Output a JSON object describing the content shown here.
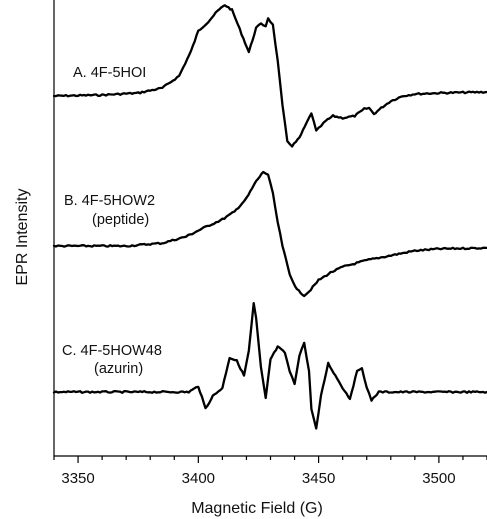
{
  "chart_data": {
    "type": "line",
    "title": "",
    "xlabel": "Magnetic Field (G)",
    "ylabel": "EPR Intensity",
    "xlim": [
      3340,
      3520
    ],
    "x_ticks": [
      3350,
      3400,
      3450,
      3500
    ],
    "y_ticks_shown": false,
    "grid": false,
    "legend": "none",
    "line_color": "#000000",
    "series": [
      {
        "name": "A. 4F-5HOI",
        "sublabel": "",
        "baseline": 0.0,
        "points": [
          [
            3340,
            0
          ],
          [
            3360,
            0.01
          ],
          [
            3375,
            0.03
          ],
          [
            3385,
            0.08
          ],
          [
            3392,
            0.2
          ],
          [
            3397,
            0.45
          ],
          [
            3400,
            0.65
          ],
          [
            3404,
            0.74
          ],
          [
            3408,
            0.85
          ],
          [
            3411,
            0.91
          ],
          [
            3414,
            0.86
          ],
          [
            3418,
            0.62
          ],
          [
            3421,
            0.44
          ],
          [
            3424,
            0.68
          ],
          [
            3426,
            0.72
          ],
          [
            3428,
            0.7
          ],
          [
            3429,
            0.78
          ],
          [
            3431,
            0.71
          ],
          [
            3433,
            0.35
          ],
          [
            3435,
            -0.1
          ],
          [
            3437,
            -0.45
          ],
          [
            3439,
            -0.5
          ],
          [
            3442,
            -0.42
          ],
          [
            3445,
            -0.27
          ],
          [
            3447,
            -0.17
          ],
          [
            3449,
            -0.35
          ],
          [
            3451,
            -0.3
          ],
          [
            3453,
            -0.25
          ],
          [
            3456,
            -0.2
          ],
          [
            3460,
            -0.22
          ],
          [
            3465,
            -0.2
          ],
          [
            3469,
            -0.13
          ],
          [
            3471,
            -0.12
          ],
          [
            3473,
            -0.18
          ],
          [
            3476,
            -0.12
          ],
          [
            3480,
            -0.05
          ],
          [
            3485,
            0.0
          ],
          [
            3490,
            0.02
          ],
          [
            3500,
            0.03
          ],
          [
            3520,
            0.04
          ]
        ]
      },
      {
        "name": "B. 4F-5HOW2",
        "sublabel": "(peptide)",
        "baseline": 0.0,
        "points": [
          [
            3340,
            0
          ],
          [
            3370,
            0.0
          ],
          [
            3385,
            0.03
          ],
          [
            3395,
            0.1
          ],
          [
            3403,
            0.2
          ],
          [
            3410,
            0.28
          ],
          [
            3415,
            0.36
          ],
          [
            3420,
            0.5
          ],
          [
            3424,
            0.68
          ],
          [
            3427,
            0.78
          ],
          [
            3429,
            0.75
          ],
          [
            3431,
            0.55
          ],
          [
            3433,
            0.25
          ],
          [
            3435,
            0.0
          ],
          [
            3438,
            -0.3
          ],
          [
            3441,
            -0.46
          ],
          [
            3444,
            -0.52
          ],
          [
            3446,
            -0.48
          ],
          [
            3450,
            -0.36
          ],
          [
            3455,
            -0.28
          ],
          [
            3460,
            -0.22
          ],
          [
            3470,
            -0.15
          ],
          [
            3480,
            -0.1
          ],
          [
            3490,
            -0.05
          ],
          [
            3500,
            -0.03
          ],
          [
            3520,
            -0.02
          ]
        ]
      },
      {
        "name": "C. 4F-5HOW48",
        "sublabel": "(azurin)",
        "baseline": 0.0,
        "points": [
          [
            3340,
            0
          ],
          [
            3380,
            0.0
          ],
          [
            3396,
            0.0
          ],
          [
            3400,
            0.07
          ],
          [
            3403,
            -0.2
          ],
          [
            3406,
            -0.05
          ],
          [
            3410,
            0.05
          ],
          [
            3413,
            0.42
          ],
          [
            3416,
            0.38
          ],
          [
            3419,
            0.2
          ],
          [
            3421,
            0.5
          ],
          [
            3423,
            1.08
          ],
          [
            3424,
            0.9
          ],
          [
            3426,
            0.3
          ],
          [
            3428,
            -0.08
          ],
          [
            3430,
            0.4
          ],
          [
            3433,
            0.55
          ],
          [
            3436,
            0.48
          ],
          [
            3438,
            0.25
          ],
          [
            3440,
            0.1
          ],
          [
            3442,
            0.45
          ],
          [
            3444,
            0.6
          ],
          [
            3446,
            0.25
          ],
          [
            3447,
            -0.2
          ],
          [
            3449,
            -0.45
          ],
          [
            3451,
            -0.05
          ],
          [
            3454,
            0.35
          ],
          [
            3457,
            0.2
          ],
          [
            3460,
            0.05
          ],
          [
            3463,
            -0.08
          ],
          [
            3466,
            0.25
          ],
          [
            3468,
            0.3
          ],
          [
            3470,
            0.05
          ],
          [
            3472,
            -0.1
          ],
          [
            3475,
            0.0
          ],
          [
            3480,
            0.0
          ],
          [
            3520,
            0.0
          ]
        ]
      }
    ]
  }
}
